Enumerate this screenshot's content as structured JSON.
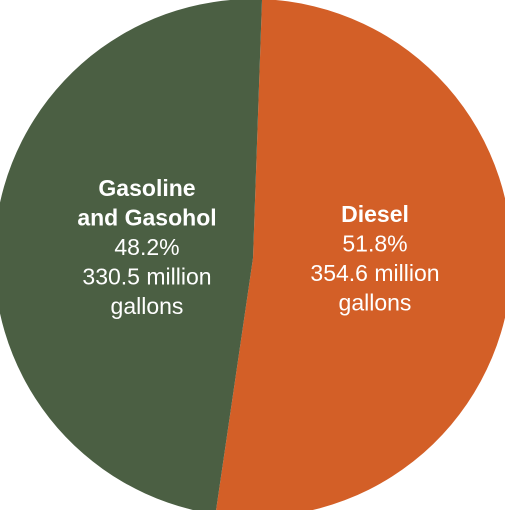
{
  "chart_data": {
    "type": "pie",
    "slices": [
      {
        "label_lines": [
          "Diesel"
        ],
        "percent_label": "51.8%",
        "amount_lines": [
          "354.6 million",
          "gallons"
        ],
        "value": 354.6,
        "percent": 51.8,
        "color": "#d35f27"
      },
      {
        "label_lines": [
          "Gasoline",
          "and Gasohol"
        ],
        "percent_label": "48.2%",
        "amount_lines": [
          "330.5 million",
          "gallons"
        ],
        "value": 330.5,
        "percent": 48.2,
        "color": "#4b5f43"
      }
    ]
  },
  "top_heading_partial": "Diesel"
}
